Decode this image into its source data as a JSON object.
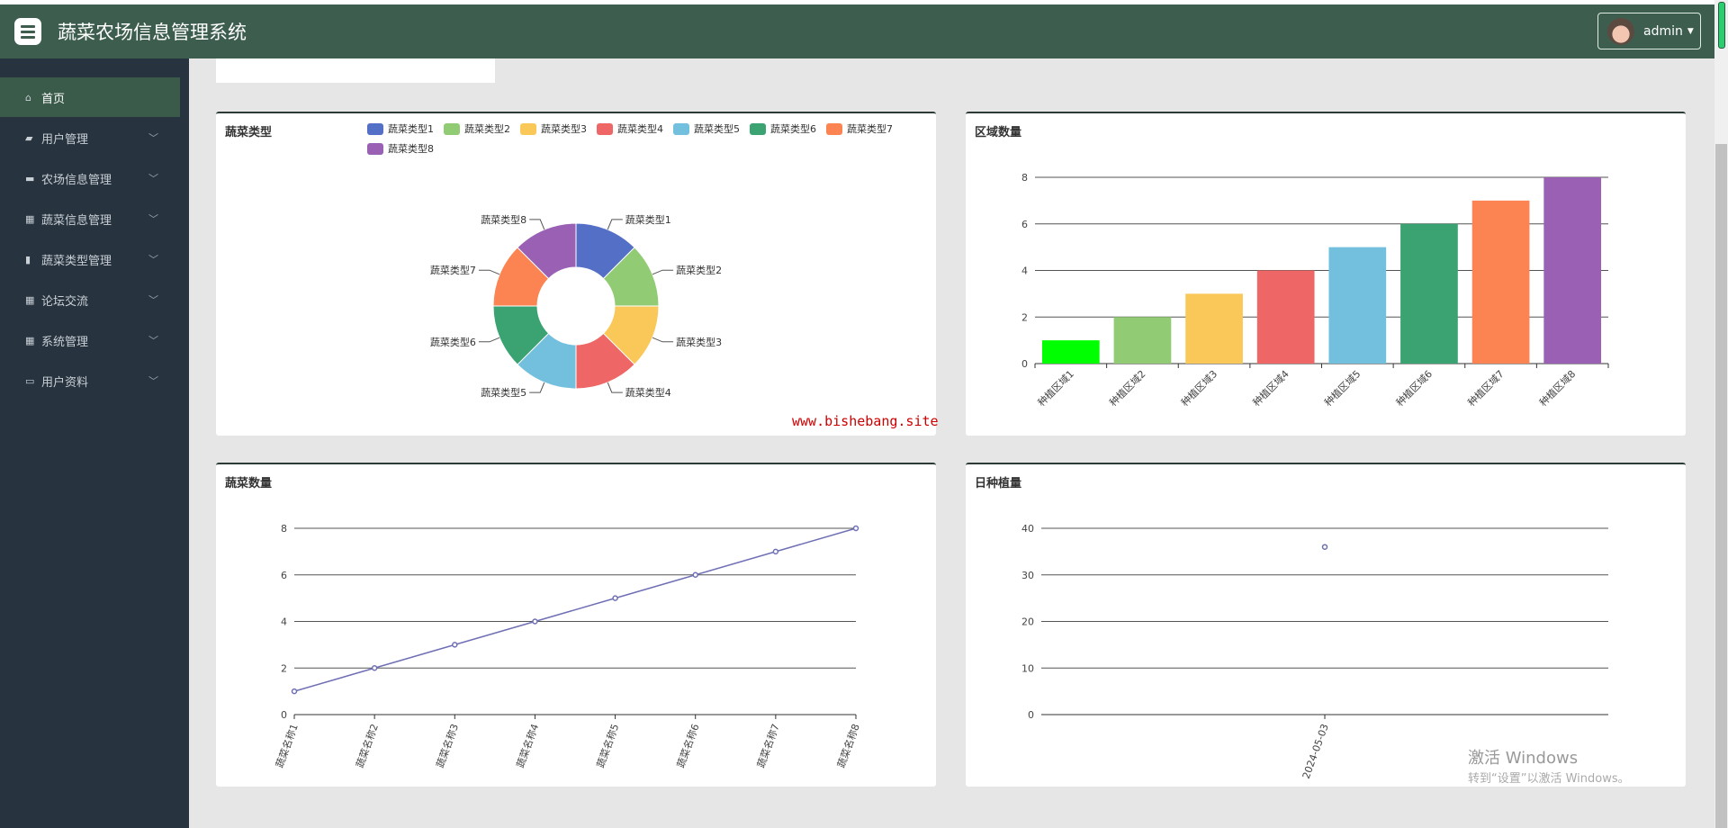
{
  "header": {
    "title": "蔬菜农场信息管理系统",
    "user": "admin"
  },
  "sidebar": {
    "items": [
      {
        "label": "首页",
        "icon": "home-icon",
        "active": true
      },
      {
        "label": "用户管理",
        "icon": "user-icon"
      },
      {
        "label": "农场信息管理",
        "icon": "ticket-icon"
      },
      {
        "label": "蔬菜信息管理",
        "icon": "grid-icon"
      },
      {
        "label": "蔬菜类型管理",
        "icon": "bar-icon"
      },
      {
        "label": "论坛交流",
        "icon": "apps-icon"
      },
      {
        "label": "系统管理",
        "icon": "grid-icon"
      },
      {
        "label": "用户资料",
        "icon": "card-icon"
      }
    ]
  },
  "watermark": "www.bishebang.site",
  "windows": {
    "line1": "激活 Windows",
    "line2": "转到“设置”以激活 Windows。"
  },
  "colors": [
    "#5470c6",
    "#91cc75",
    "#fac858",
    "#ee6666",
    "#73c0de",
    "#3ba272",
    "#fc8452",
    "#9a60b4"
  ],
  "chart_data": [
    {
      "type": "pie",
      "title": "蔬菜类型",
      "categories": [
        "蔬菜类型1",
        "蔬菜类型2",
        "蔬菜类型3",
        "蔬菜类型4",
        "蔬菜类型5",
        "蔬菜类型6",
        "蔬菜类型7",
        "蔬菜类型8"
      ],
      "values": [
        1,
        1,
        1,
        1,
        1,
        1,
        1,
        1
      ],
      "legend": "top"
    },
    {
      "type": "bar",
      "title": "区域数量",
      "categories": [
        "种植区域1",
        "种植区域2",
        "种植区域3",
        "种植区域4",
        "种植区域5",
        "种植区域6",
        "种植区域7",
        "种植区域8"
      ],
      "values": [
        1,
        2,
        3,
        4,
        5,
        6,
        7,
        8
      ],
      "bar_colors": [
        "#00ff00",
        "#91cc75",
        "#fac858",
        "#ee6666",
        "#73c0de",
        "#3ba272",
        "#fc8452",
        "#9a60b4"
      ],
      "ylim": [
        0,
        8
      ],
      "yticks": [
        0,
        2,
        4,
        6,
        8
      ]
    },
    {
      "type": "line",
      "title": "蔬菜数量",
      "categories": [
        "蔬菜名称1",
        "蔬菜名称2",
        "蔬菜名称3",
        "蔬菜名称4",
        "蔬菜名称5",
        "蔬菜名称6",
        "蔬菜名称7",
        "蔬菜名称8"
      ],
      "values": [
        1,
        2,
        3,
        4,
        5,
        6,
        7,
        8
      ],
      "ylim": [
        0,
        8
      ],
      "yticks": [
        0,
        2,
        4,
        6,
        8
      ],
      "color": "#6f6fb5"
    },
    {
      "type": "line",
      "title": "日种植量",
      "categories": [
        "2024-05-03"
      ],
      "values": [
        36
      ],
      "ylim": [
        0,
        40
      ],
      "yticks": [
        0,
        10,
        20,
        30,
        40
      ],
      "color": "#6f6fb5"
    }
  ]
}
